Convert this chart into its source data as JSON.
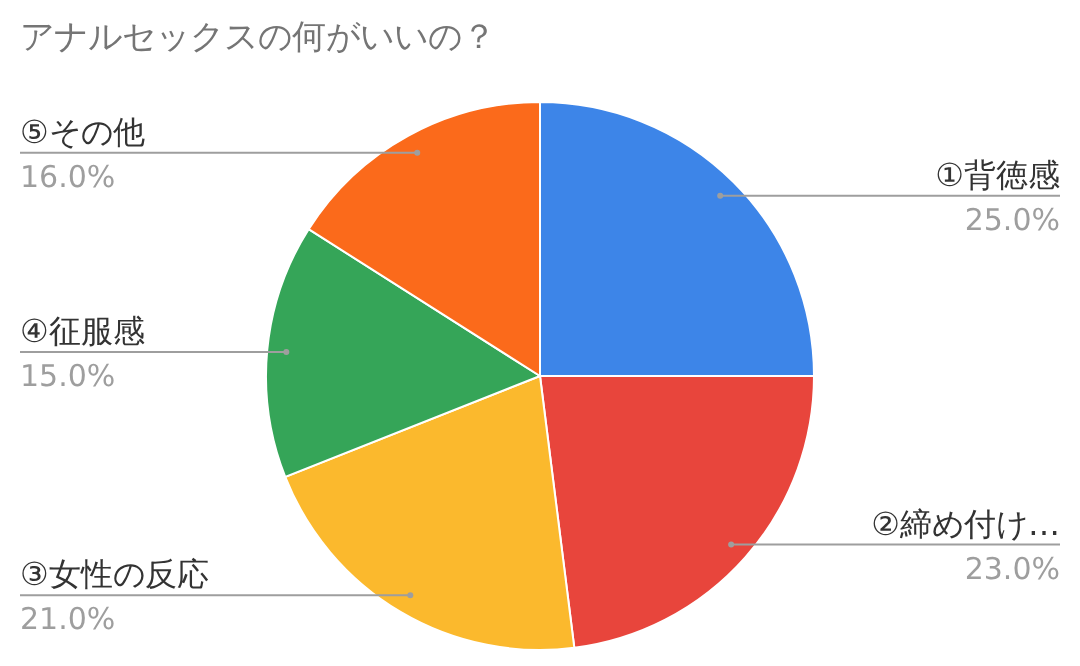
{
  "chart_data": {
    "type": "pie",
    "title": "アナルセックスの何がいいの？",
    "categories": [
      "①背徳感",
      "②締め付け…",
      "③女性の反応",
      "④征服感",
      "⑤その他"
    ],
    "values": [
      25.0,
      23.0,
      21.0,
      15.0,
      16.0
    ],
    "colors": [
      "#3d85e8",
      "#e8453c",
      "#fbb92d",
      "#35a558",
      "#fb6a1b"
    ],
    "value_labels": [
      "25.0%",
      "23.0%",
      "21.0%",
      "15.0%",
      "16.0%"
    ]
  }
}
